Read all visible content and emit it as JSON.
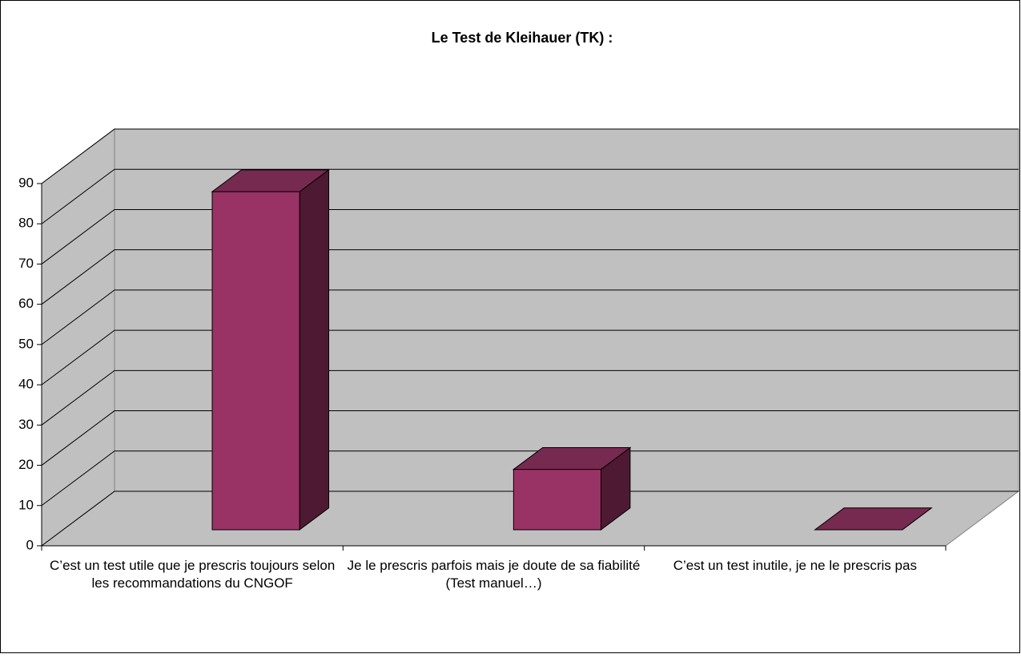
{
  "chart_data": {
    "type": "bar3d",
    "title": "Le Test de Kleihauer (TK) :",
    "categories": [
      "C’est un test utile que je prescris toujours selon les recommandations du CNGOF",
      "Je le prescris parfois mais je doute de sa fiabilité (Test manuel…)",
      "C’est un test inutile, je ne le prescris pas"
    ],
    "values": [
      84,
      15,
      0
    ],
    "color": "#993366",
    "ylim": [
      0,
      90
    ],
    "yticks": [
      0,
      10,
      20,
      30,
      40,
      50,
      60,
      70,
      80,
      90
    ],
    "grid": true
  }
}
